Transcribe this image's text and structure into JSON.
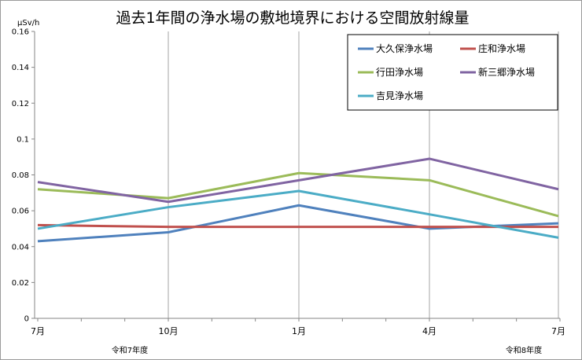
{
  "chart_data": {
    "type": "line",
    "title": "過去1年間の浄水場の敷地境界における空間放射線量",
    "ylabel": "μSv/h",
    "xlabel": "",
    "ylim": [
      0,
      0.16
    ],
    "yticks": [
      "0",
      "0.02",
      "0.04",
      "0.06",
      "0.08",
      "0.1",
      "0.12",
      "0.14",
      "0.16"
    ],
    "categories": [
      "7月",
      "10月",
      "1月",
      "4月",
      "7月"
    ],
    "year_labels": [
      "令和7年度",
      "令和8年度"
    ],
    "grid": "vertical",
    "legend_position": "top-right",
    "series": [
      {
        "name": "大久保浄水場",
        "color": "#4f81bd",
        "values": [
          0.043,
          0.048,
          0.063,
          0.05,
          0.053
        ]
      },
      {
        "name": "庄和浄水場",
        "color": "#c0504d",
        "values": [
          0.052,
          0.051,
          0.051,
          0.051,
          0.051
        ]
      },
      {
        "name": "行田浄水場",
        "color": "#9bbb59",
        "values": [
          0.072,
          0.067,
          0.081,
          0.077,
          0.057
        ]
      },
      {
        "name": "新三郷浄水場",
        "color": "#8064a2",
        "values": [
          0.076,
          0.065,
          0.077,
          0.089,
          0.072
        ]
      },
      {
        "name": "吉見浄水場",
        "color": "#4bacc6",
        "values": [
          0.05,
          0.062,
          0.071,
          0.058,
          0.045
        ]
      }
    ]
  }
}
